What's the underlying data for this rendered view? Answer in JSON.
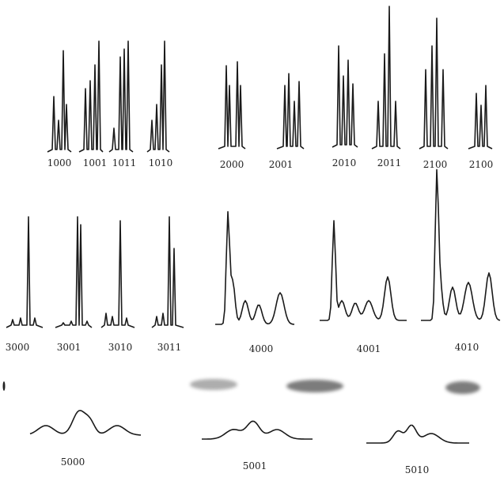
{
  "panels": [
    {
      "label": "1000"
    },
    {
      "label": "1001"
    },
    {
      "label": "1011"
    },
    {
      "label": "1010"
    },
    {
      "label": "2000"
    },
    {
      "label": "2001"
    },
    {
      "label": "2010"
    },
    {
      "label": "2011"
    },
    {
      "label": "2100"
    },
    {
      "label": "2100"
    },
    {
      "label": "3000"
    },
    {
      "label": "3001"
    },
    {
      "label": "3010"
    },
    {
      "label": "3011"
    },
    {
      "label": "4000"
    },
    {
      "label": "4001"
    },
    {
      "label": "4010"
    },
    {
      "label": "5000"
    },
    {
      "label": "5001"
    },
    {
      "label": "5010"
    }
  ]
}
